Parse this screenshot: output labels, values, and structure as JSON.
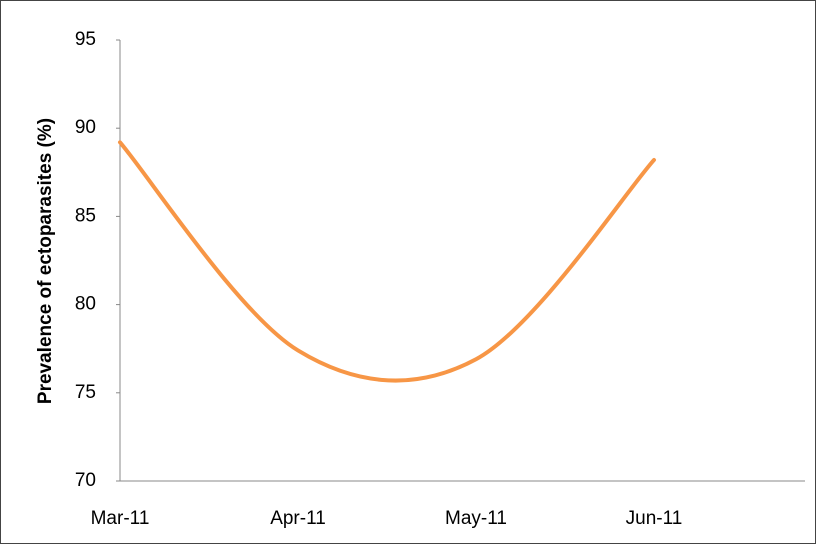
{
  "chart_data": {
    "type": "line",
    "y_label": "Prevalence of ectoparasites (%)",
    "categories": [
      "Mar-11",
      "Apr-11",
      "May-11",
      "Jun-11"
    ],
    "series": [
      {
        "name": "Prevalence",
        "color": "#f79646",
        "values": [
          89.2,
          77.4,
          76.9,
          88.2
        ]
      }
    ],
    "ylim": [
      70,
      95
    ],
    "yticks": [
      70,
      75,
      80,
      85,
      90,
      95
    ],
    "smooth": true,
    "grid": false
  }
}
